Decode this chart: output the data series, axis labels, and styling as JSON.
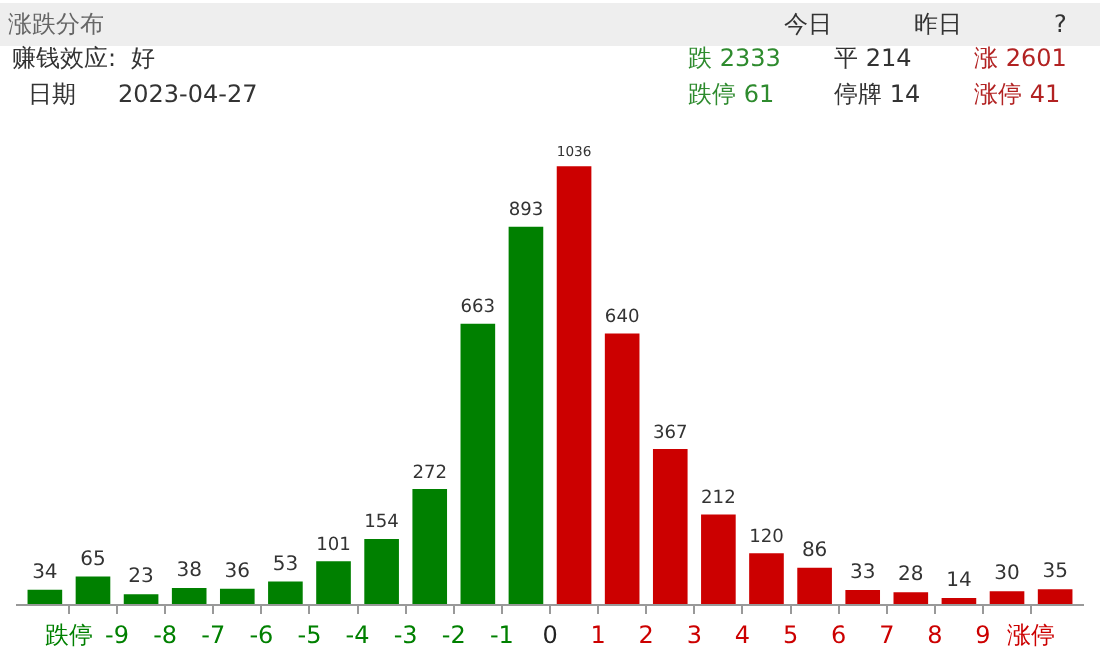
{
  "chart_data": {
    "type": "bar",
    "title": "涨跌分布",
    "annotations": [
      "今日",
      "昨日",
      "?",
      "赚钱效应:  好",
      "日期",
      "2023-04-27",
      "跌 2333",
      "平 214",
      "涨 2601",
      "跌停 61",
      "停牌 14",
      "涨停 41"
    ],
    "x": [
      -10.5,
      -9.5,
      -8.5,
      -7.5,
      -6.5,
      -5.5,
      -4.5,
      -3.5,
      -2.5,
      -1.5,
      -0.5,
      0.5,
      1.5,
      2.5,
      3.5,
      4.5,
      5.5,
      6.5,
      7.5,
      8.5,
      9.5,
      10.5
    ],
    "values": [
      34,
      65,
      23,
      38,
      36,
      53,
      101,
      154,
      272,
      663,
      893,
      1036,
      640,
      367,
      212,
      120,
      86,
      33,
      28,
      14,
      30,
      35
    ],
    "colors": [
      "#008000",
      "#008000",
      "#008000",
      "#008000",
      "#008000",
      "#008000",
      "#008000",
      "#008000",
      "#008000",
      "#008000",
      "#008000",
      "#cc0000",
      "#cc0000",
      "#cc0000",
      "#cc0000",
      "#cc0000",
      "#cc0000",
      "#cc0000",
      "#cc0000",
      "#cc0000",
      "#cc0000",
      "#cc0000"
    ],
    "xlim": [
      -11.1,
      11.1
    ],
    "xticks": [
      {
        "value": -10,
        "label": "跌停"
      },
      -9,
      -8,
      -7,
      -6,
      -5,
      -4,
      -3,
      -2,
      -1,
      0,
      1,
      2,
      3,
      4,
      5,
      6,
      7,
      8,
      9,
      {
        "value": 10,
        "label": "涨停"
      }
    ],
    "data_labels": true
  }
}
